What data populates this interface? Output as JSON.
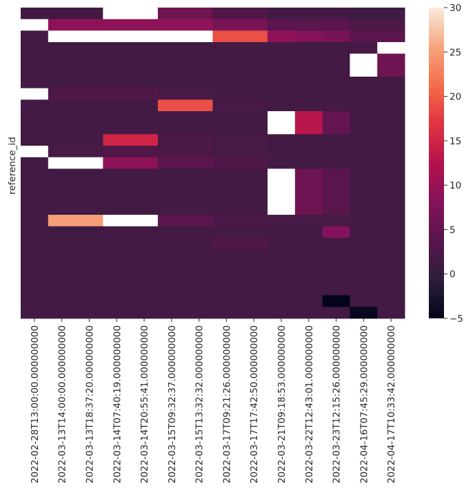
{
  "chart_data": {
    "type": "heatmap",
    "ylabel": "reference_id",
    "xlabel": "",
    "x_tick_labels": [
      "2022-02-28T13:00:00.000000000",
      "2022-03-13T14:00:00.000000000",
      "2022-03-13T18:37:20.000000000",
      "2022-03-14T07:40:19.000000000",
      "2022-03-14T20:55:41.000000000",
      "2022-03-15T09:32:37.000000000",
      "2022-03-15T13:32:32.000000000",
      "2022-03-17T09:21:26.000000000",
      "2022-03-17T17:42:50.000000000",
      "2022-03-21T09:18:53.000000000",
      "2022-03-22T12:43:01.000000000",
      "2022-03-23T12:15:26.000000000",
      "2022-04-16T07:45:29.000000000",
      "2022-04-17T10:33:42.000000000"
    ],
    "colorbar": {
      "vmin": -5,
      "vmax": 30,
      "ticks": [
        -5,
        0,
        5,
        10,
        15,
        20,
        25,
        30
      ]
    },
    "cells": [
      {
        "row": 0,
        "col_start": 0,
        "col_end": 3,
        "value": 1.5
      },
      {
        "row": 0,
        "col_start": 3,
        "col_end": 5,
        "value": 32
      },
      {
        "row": 0,
        "col_start": 5,
        "col_end": 7,
        "value": 6
      },
      {
        "row": 0,
        "col_start": 7,
        "col_end": 9,
        "value": 3
      },
      {
        "row": 0,
        "col_start": 9,
        "col_end": 12,
        "value": 1.5
      },
      {
        "row": 0,
        "col_start": 12,
        "col_end": 14,
        "value": 1
      },
      {
        "row": 1,
        "col_start": 0,
        "col_end": 1,
        "value": 32
      },
      {
        "row": 1,
        "col_start": 1,
        "col_end": 7,
        "value": 9
      },
      {
        "row": 1,
        "col_start": 7,
        "col_end": 9,
        "value": 7
      },
      {
        "row": 1,
        "col_start": 9,
        "col_end": 12,
        "value": 4
      },
      {
        "row": 1,
        "col_start": 12,
        "col_end": 14,
        "value": 2.5
      },
      {
        "row": 2,
        "col_start": 0,
        "col_end": 1,
        "value": 1.5
      },
      {
        "row": 2,
        "col_start": 1,
        "col_end": 7,
        "value": 32
      },
      {
        "row": 2,
        "col_start": 7,
        "col_end": 9,
        "value": 19
      },
      {
        "row": 2,
        "col_start": 9,
        "col_end": 10,
        "value": 9
      },
      {
        "row": 2,
        "col_start": 10,
        "col_end": 11,
        "value": 8
      },
      {
        "row": 2,
        "col_start": 11,
        "col_end": 12,
        "value": 7
      },
      {
        "row": 2,
        "col_start": 12,
        "col_end": 14,
        "value": 4
      },
      {
        "row": 3,
        "col_start": 0,
        "col_end": 12,
        "value": 1.5
      },
      {
        "row": 3,
        "col_start": 12,
        "col_end": 13,
        "value": 2
      },
      {
        "row": 3,
        "col_start": 13,
        "col_end": 14,
        "value": 32
      },
      {
        "row": 4,
        "col_start": 0,
        "col_end": 12,
        "value": 1.5
      },
      {
        "row": 4,
        "col_start": 12,
        "col_end": 13,
        "value": 32
      },
      {
        "row": 4,
        "col_start": 13,
        "col_end": 14,
        "value": 6
      },
      {
        "row": 5,
        "col_start": 0,
        "col_end": 12,
        "value": 1.5
      },
      {
        "row": 5,
        "col_start": 12,
        "col_end": 13,
        "value": 32
      },
      {
        "row": 5,
        "col_start": 13,
        "col_end": 14,
        "value": 6
      },
      {
        "row": 6,
        "col_start": 0,
        "col_end": 12,
        "value": 1.5
      },
      {
        "row": 6,
        "col_start": 12,
        "col_end": 14,
        "value": 1.5
      },
      {
        "row": 7,
        "col_start": 0,
        "col_end": 1,
        "value": 32
      },
      {
        "row": 7,
        "col_start": 1,
        "col_end": 5,
        "value": 3
      },
      {
        "row": 7,
        "col_start": 5,
        "col_end": 7,
        "value": 2
      },
      {
        "row": 7,
        "col_start": 7,
        "col_end": 14,
        "value": 1.5
      },
      {
        "row": 8,
        "col_start": 0,
        "col_end": 5,
        "value": 1.5
      },
      {
        "row": 8,
        "col_start": 5,
        "col_end": 7,
        "value": 19
      },
      {
        "row": 8,
        "col_start": 7,
        "col_end": 9,
        "value": 2
      },
      {
        "row": 8,
        "col_start": 9,
        "col_end": 14,
        "value": 1.5
      },
      {
        "row": 9,
        "col_start": 0,
        "col_end": 9,
        "value": 1.5
      },
      {
        "row": 9,
        "col_start": 9,
        "col_end": 10,
        "value": 32
      },
      {
        "row": 9,
        "col_start": 10,
        "col_end": 11,
        "value": 13
      },
      {
        "row": 9,
        "col_start": 11,
        "col_end": 12,
        "value": 5
      },
      {
        "row": 9,
        "col_start": 12,
        "col_end": 14,
        "value": 1.5
      },
      {
        "row": 10,
        "col_start": 0,
        "col_end": 9,
        "value": 1.5
      },
      {
        "row": 10,
        "col_start": 9,
        "col_end": 10,
        "value": 32
      },
      {
        "row": 10,
        "col_start": 10,
        "col_end": 11,
        "value": 13
      },
      {
        "row": 10,
        "col_start": 11,
        "col_end": 12,
        "value": 5
      },
      {
        "row": 10,
        "col_start": 12,
        "col_end": 14,
        "value": 1.5
      },
      {
        "row": 11,
        "col_start": 0,
        "col_end": 3,
        "value": 1.5
      },
      {
        "row": 11,
        "col_start": 3,
        "col_end": 5,
        "value": 15
      },
      {
        "row": 11,
        "col_start": 5,
        "col_end": 7,
        "value": 2.5
      },
      {
        "row": 11,
        "col_start": 7,
        "col_end": 9,
        "value": 2
      },
      {
        "row": 11,
        "col_start": 9,
        "col_end": 14,
        "value": 1.5
      },
      {
        "row": 12,
        "col_start": 0,
        "col_end": 1,
        "value": 32
      },
      {
        "row": 12,
        "col_start": 1,
        "col_end": 3,
        "value": 2
      },
      {
        "row": 12,
        "col_start": 3,
        "col_end": 5,
        "value": 3
      },
      {
        "row": 12,
        "col_start": 5,
        "col_end": 7,
        "value": 2.5
      },
      {
        "row": 12,
        "col_start": 7,
        "col_end": 9,
        "value": 2
      },
      {
        "row": 12,
        "col_start": 9,
        "col_end": 14,
        "value": 1.5
      },
      {
        "row": 13,
        "col_start": 0,
        "col_end": 1,
        "value": 1.5
      },
      {
        "row": 13,
        "col_start": 1,
        "col_end": 3,
        "value": 32
      },
      {
        "row": 13,
        "col_start": 3,
        "col_end": 5,
        "value": 9
      },
      {
        "row": 13,
        "col_start": 5,
        "col_end": 7,
        "value": 4
      },
      {
        "row": 13,
        "col_start": 7,
        "col_end": 9,
        "value": 3
      },
      {
        "row": 13,
        "col_start": 9,
        "col_end": 14,
        "value": 1.5
      },
      {
        "row": 14,
        "col_start": 0,
        "col_end": 9,
        "value": 1.5
      },
      {
        "row": 14,
        "col_start": 9,
        "col_end": 10,
        "value": 32
      },
      {
        "row": 14,
        "col_start": 10,
        "col_end": 11,
        "value": 6
      },
      {
        "row": 14,
        "col_start": 11,
        "col_end": 12,
        "value": 4
      },
      {
        "row": 14,
        "col_start": 12,
        "col_end": 14,
        "value": 1.5
      },
      {
        "row": 15,
        "col_start": 0,
        "col_end": 9,
        "value": 1.5
      },
      {
        "row": 15,
        "col_start": 9,
        "col_end": 10,
        "value": 32
      },
      {
        "row": 15,
        "col_start": 10,
        "col_end": 11,
        "value": 6
      },
      {
        "row": 15,
        "col_start": 11,
        "col_end": 12,
        "value": 4
      },
      {
        "row": 15,
        "col_start": 12,
        "col_end": 14,
        "value": 1.5
      },
      {
        "row": 16,
        "col_start": 0,
        "col_end": 9,
        "value": 1.5
      },
      {
        "row": 16,
        "col_start": 9,
        "col_end": 10,
        "value": 32
      },
      {
        "row": 16,
        "col_start": 10,
        "col_end": 11,
        "value": 6
      },
      {
        "row": 16,
        "col_start": 11,
        "col_end": 12,
        "value": 4
      },
      {
        "row": 16,
        "col_start": 12,
        "col_end": 14,
        "value": 1.5
      },
      {
        "row": 17,
        "col_start": 0,
        "col_end": 9,
        "value": 1.5
      },
      {
        "row": 17,
        "col_start": 9,
        "col_end": 10,
        "value": 32
      },
      {
        "row": 17,
        "col_start": 10,
        "col_end": 11,
        "value": 6
      },
      {
        "row": 17,
        "col_start": 11,
        "col_end": 12,
        "value": 4
      },
      {
        "row": 17,
        "col_start": 12,
        "col_end": 14,
        "value": 1.5
      },
      {
        "row": 18,
        "col_start": 0,
        "col_end": 1,
        "value": 1.5
      },
      {
        "row": 18,
        "col_start": 1,
        "col_end": 3,
        "value": 25
      },
      {
        "row": 18,
        "col_start": 3,
        "col_end": 5,
        "value": 32
      },
      {
        "row": 18,
        "col_start": 5,
        "col_end": 7,
        "value": 4
      },
      {
        "row": 18,
        "col_start": 7,
        "col_end": 9,
        "value": 2.5
      },
      {
        "row": 18,
        "col_start": 9,
        "col_end": 12,
        "value": 2
      },
      {
        "row": 18,
        "col_start": 12,
        "col_end": 14,
        "value": 1.5
      },
      {
        "row": 19,
        "col_start": 0,
        "col_end": 11,
        "value": 1.5
      },
      {
        "row": 19,
        "col_start": 11,
        "col_end": 12,
        "value": 8
      },
      {
        "row": 19,
        "col_start": 12,
        "col_end": 14,
        "value": 1.5
      },
      {
        "row": 20,
        "col_start": 0,
        "col_end": 7,
        "value": 1.5
      },
      {
        "row": 20,
        "col_start": 7,
        "col_end": 9,
        "value": 3
      },
      {
        "row": 20,
        "col_start": 9,
        "col_end": 14,
        "value": 1.5
      },
      {
        "row": 21,
        "col_start": 0,
        "col_end": 14,
        "value": 1.5
      },
      {
        "row": 22,
        "col_start": 0,
        "col_end": 14,
        "value": 1.5
      },
      {
        "row": 23,
        "col_start": 0,
        "col_end": 14,
        "value": 1.5
      },
      {
        "row": 24,
        "col_start": 0,
        "col_end": 14,
        "value": 1.5
      },
      {
        "row": 25,
        "col_start": 0,
        "col_end": 11,
        "value": 1.5
      },
      {
        "row": 25,
        "col_start": 11,
        "col_end": 12,
        "value": -5
      },
      {
        "row": 25,
        "col_start": 12,
        "col_end": 14,
        "value": 1.5
      },
      {
        "row": 26,
        "col_start": 0,
        "col_end": 12,
        "value": 1.5
      },
      {
        "row": 26,
        "col_start": 12,
        "col_end": 13,
        "value": -4.5
      },
      {
        "row": 26,
        "col_start": 13,
        "col_end": 14,
        "value": 1.5
      }
    ]
  }
}
